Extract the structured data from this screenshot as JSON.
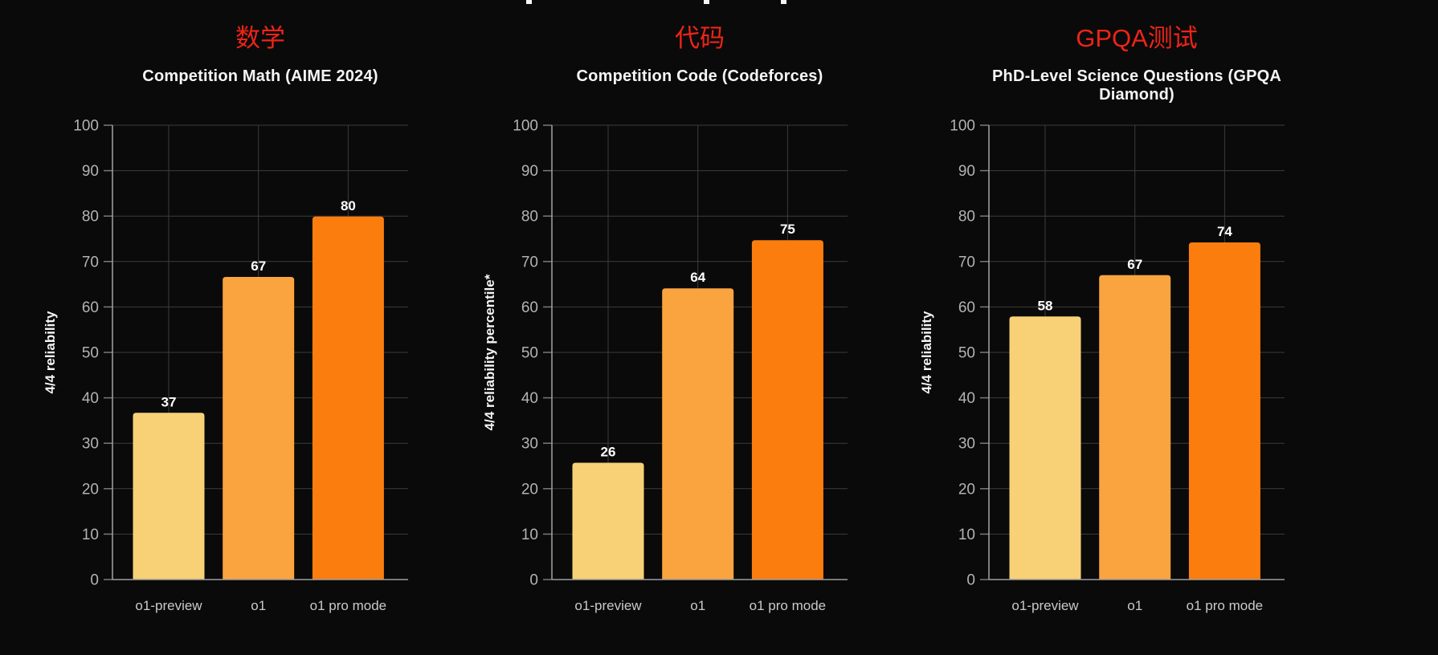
{
  "style": {
    "background": "#0a0a0a",
    "subtitle_color": "#ee2418",
    "title_color": "#f5f5f5",
    "grid_color": "#3c3c3c",
    "axis_color": "#9c9c9c",
    "tick_color": "#7a7a7a",
    "tick_label_color": "#b3b3b3",
    "category_label_color": "#c9c9c9",
    "value_label_color": "#ffffff"
  },
  "chart_data": [
    {
      "type": "bar",
      "subtitle_cn": "数学",
      "title": "Competition Math (AIME 2024)",
      "ylabel": "4/4 reliability",
      "xlabel": "",
      "categories": [
        "o1-preview",
        "o1",
        "o1 pro mode"
      ],
      "values": [
        37,
        67,
        80
      ],
      "bar_tops_precise": [
        36.7,
        66.6,
        79.9
      ],
      "ylim": [
        0,
        100
      ],
      "ytick_step": 10,
      "grid": true,
      "legend": "none",
      "bar_colors": [
        "#f8d177",
        "#faa440",
        "#fa7d0e"
      ]
    },
    {
      "type": "bar",
      "subtitle_cn": "代码",
      "title": "Competition Code (Codeforces)",
      "ylabel": "4/4 reliability percentile*",
      "xlabel": "",
      "categories": [
        "o1-preview",
        "o1",
        "o1 pro mode"
      ],
      "values": [
        26,
        64,
        75
      ],
      "bar_tops_precise": [
        25.7,
        64.1,
        74.7
      ],
      "ylim": [
        0,
        100
      ],
      "ytick_step": 10,
      "grid": true,
      "legend": "none",
      "bar_colors": [
        "#f8d177",
        "#faa440",
        "#fa7d0e"
      ]
    },
    {
      "type": "bar",
      "subtitle_cn": "GPQA测试",
      "title": "PhD-Level Science Questions (GPQA Diamond)",
      "ylabel": "4/4 reliability",
      "xlabel": "",
      "categories": [
        "o1-preview",
        "o1",
        "o1 pro mode"
      ],
      "values": [
        58,
        67,
        74
      ],
      "bar_tops_precise": [
        57.9,
        67.0,
        74.2
      ],
      "ylim": [
        0,
        100
      ],
      "ytick_step": 10,
      "grid": true,
      "legend": "none",
      "bar_colors": [
        "#f8d177",
        "#faa440",
        "#fa7d0e"
      ]
    }
  ]
}
